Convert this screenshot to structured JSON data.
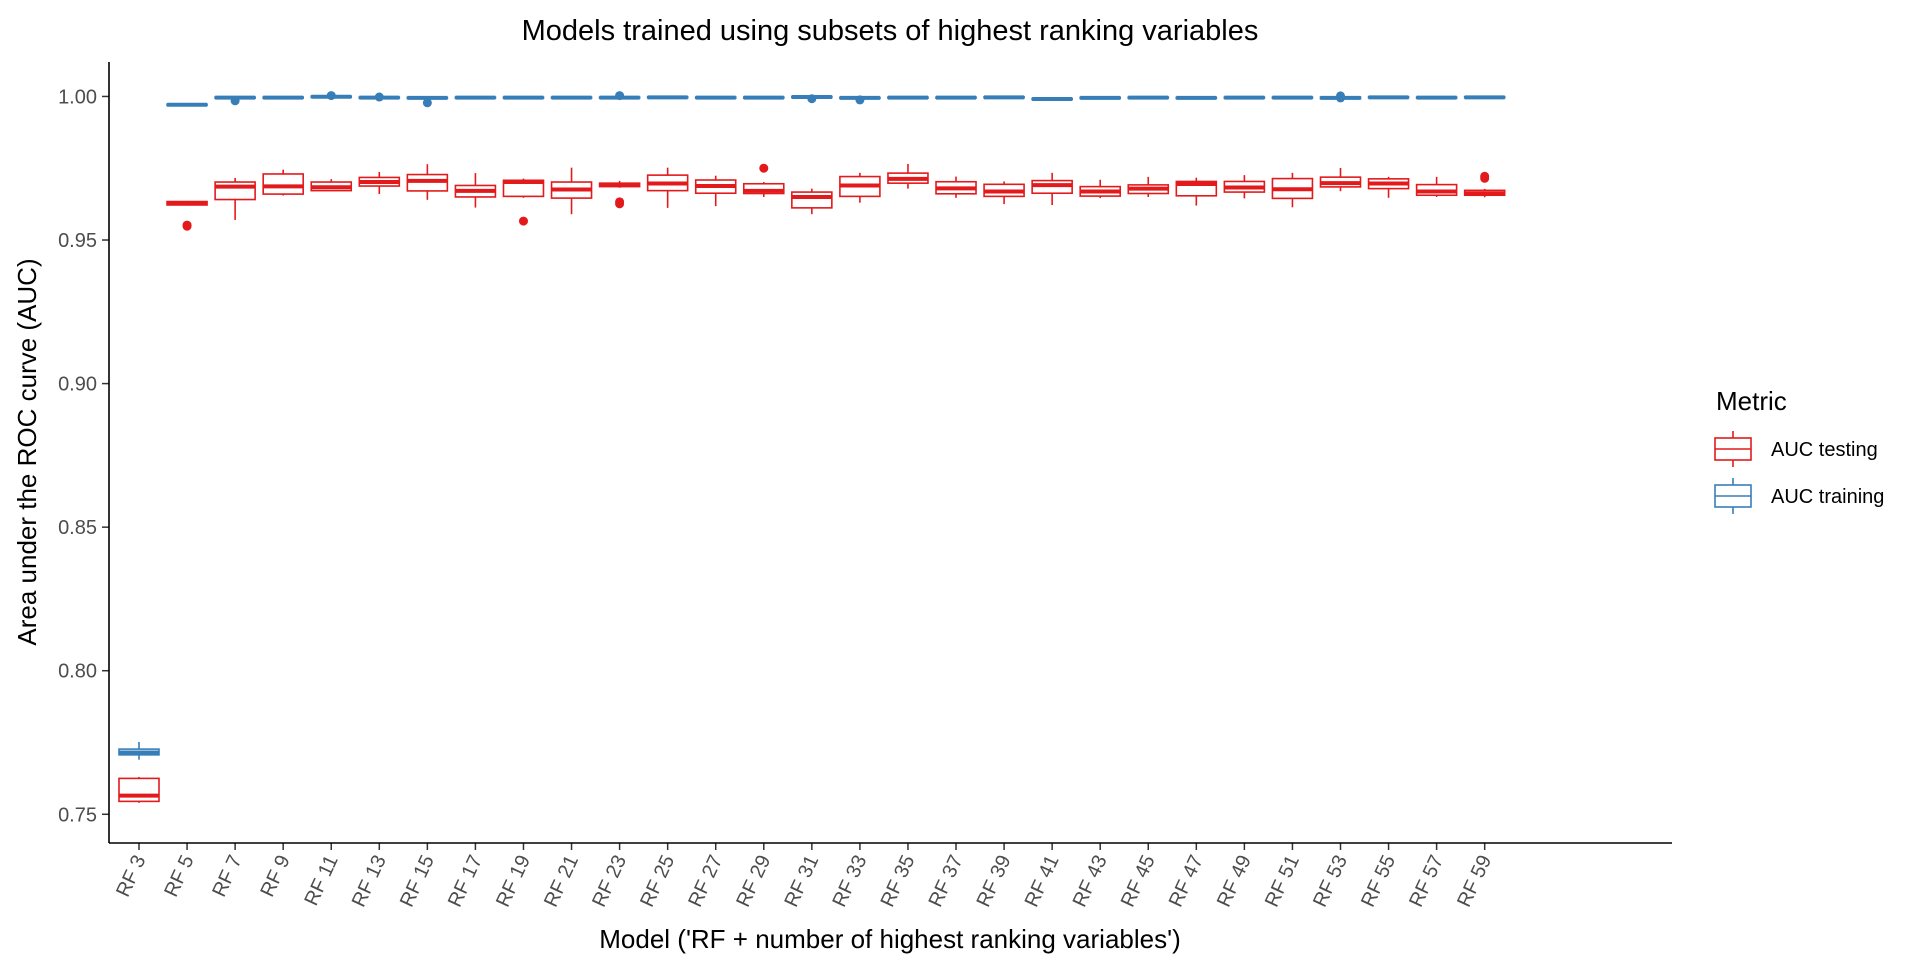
{
  "chart_data": {
    "type": "boxplot",
    "title": "Models trained using subsets of highest ranking variables",
    "xlabel": "Model ('RF + number of highest ranking variables')",
    "ylabel": "Area under the ROC curve (AUC)",
    "ylim": [
      0.74,
      1.012
    ],
    "yticks": [
      0.75,
      0.8,
      0.85,
      0.9,
      0.95,
      1.0
    ],
    "ytick_labels": [
      "0.75",
      "0.80",
      "0.85",
      "0.90",
      "0.95",
      "1.00"
    ],
    "grid": false,
    "legend": {
      "title": "Metric",
      "position": "right",
      "entries": [
        "AUC testing",
        "AUC training"
      ]
    },
    "categories": [
      "RF 3",
      "RF 5",
      "RF 7",
      "RF 9",
      "RF 11",
      "RF 13",
      "RF 15",
      "RF 17",
      "RF 19",
      "RF 21",
      "RF 23",
      "RF 25",
      "RF 27",
      "RF 29",
      "RF 31",
      "RF 33",
      "RF 35",
      "RF 37",
      "RF 39",
      "RF 41",
      "RF 43",
      "RF 45",
      "RF 47",
      "RF 49",
      "RF 51",
      "RF 53",
      "RF 55",
      "RF 57",
      "RF 59"
    ],
    "series": [
      {
        "name": "AUC testing",
        "color": "#E31A1C",
        "boxes": [
          {
            "min": 0.754,
            "q1": 0.7545,
            "median": 0.7565,
            "q3": 0.7625,
            "max": 0.763,
            "outliers": []
          },
          {
            "min": 0.962,
            "q1": 0.9622,
            "median": 0.9628,
            "q3": 0.9634,
            "max": 0.9636,
            "outliers": [
              0.9552,
              0.9548
            ]
          },
          {
            "min": 0.957,
            "q1": 0.9641,
            "median": 0.9686,
            "q3": 0.9702,
            "max": 0.9716,
            "outliers": []
          },
          {
            "min": 0.9655,
            "q1": 0.966,
            "median": 0.9687,
            "q3": 0.973,
            "max": 0.9745,
            "outliers": []
          },
          {
            "min": 0.967,
            "q1": 0.9672,
            "median": 0.9684,
            "q3": 0.9702,
            "max": 0.9712,
            "outliers": []
          },
          {
            "min": 0.966,
            "q1": 0.9688,
            "median": 0.9702,
            "q3": 0.9718,
            "max": 0.9737,
            "outliers": []
          },
          {
            "min": 0.964,
            "q1": 0.9671,
            "median": 0.9706,
            "q3": 0.9728,
            "max": 0.9764,
            "outliers": []
          },
          {
            "min": 0.9613,
            "q1": 0.965,
            "median": 0.9671,
            "q3": 0.969,
            "max": 0.9733,
            "outliers": []
          },
          {
            "min": 0.9647,
            "q1": 0.9652,
            "median": 0.9702,
            "q3": 0.9708,
            "max": 0.9714,
            "outliers": [
              0.9566
            ]
          },
          {
            "min": 0.959,
            "q1": 0.9646,
            "median": 0.9676,
            "q3": 0.9702,
            "max": 0.9752,
            "outliers": []
          },
          {
            "min": 0.9682,
            "q1": 0.9686,
            "median": 0.9693,
            "q3": 0.9698,
            "max": 0.9706,
            "outliers": [
              0.9633,
              0.9626
            ]
          },
          {
            "min": 0.9612,
            "q1": 0.9672,
            "median": 0.9697,
            "q3": 0.9726,
            "max": 0.9752,
            "outliers": []
          },
          {
            "min": 0.9618,
            "q1": 0.9663,
            "median": 0.9688,
            "q3": 0.9709,
            "max": 0.9724,
            "outliers": []
          },
          {
            "min": 0.965,
            "q1": 0.9662,
            "median": 0.9671,
            "q3": 0.9696,
            "max": 0.9702,
            "outliers": [
              0.975
            ]
          },
          {
            "min": 0.959,
            "q1": 0.9612,
            "median": 0.965,
            "q3": 0.9667,
            "max": 0.9679,
            "outliers": []
          },
          {
            "min": 0.963,
            "q1": 0.9652,
            "median": 0.969,
            "q3": 0.9721,
            "max": 0.9734,
            "outliers": []
          },
          {
            "min": 0.9679,
            "q1": 0.9698,
            "median": 0.9713,
            "q3": 0.9733,
            "max": 0.9765,
            "outliers": []
          },
          {
            "min": 0.9647,
            "q1": 0.9661,
            "median": 0.968,
            "q3": 0.9703,
            "max": 0.9721,
            "outliers": []
          },
          {
            "min": 0.9625,
            "q1": 0.9652,
            "median": 0.9669,
            "q3": 0.9694,
            "max": 0.9704,
            "outliers": []
          },
          {
            "min": 0.9622,
            "q1": 0.9663,
            "median": 0.9691,
            "q3": 0.9707,
            "max": 0.9734,
            "outliers": []
          },
          {
            "min": 0.9646,
            "q1": 0.9653,
            "median": 0.9669,
            "q3": 0.9686,
            "max": 0.971,
            "outliers": []
          },
          {
            "min": 0.965,
            "q1": 0.9662,
            "median": 0.9679,
            "q3": 0.9692,
            "max": 0.972,
            "outliers": []
          },
          {
            "min": 0.962,
            "q1": 0.9654,
            "median": 0.9695,
            "q3": 0.9704,
            "max": 0.9717,
            "outliers": []
          },
          {
            "min": 0.9645,
            "q1": 0.9667,
            "median": 0.9683,
            "q3": 0.9704,
            "max": 0.9726,
            "outliers": []
          },
          {
            "min": 0.9614,
            "q1": 0.9645,
            "median": 0.9677,
            "q3": 0.9714,
            "max": 0.9734,
            "outliers": []
          },
          {
            "min": 0.967,
            "q1": 0.9685,
            "median": 0.9698,
            "q3": 0.9719,
            "max": 0.9751,
            "outliers": []
          },
          {
            "min": 0.9647,
            "q1": 0.9679,
            "median": 0.9697,
            "q3": 0.9713,
            "max": 0.972,
            "outliers": []
          },
          {
            "min": 0.965,
            "q1": 0.9656,
            "median": 0.9669,
            "q3": 0.9693,
            "max": 0.972,
            "outliers": []
          },
          {
            "min": 0.9649,
            "q1": 0.9656,
            "median": 0.9663,
            "q3": 0.9673,
            "max": 0.9678,
            "outliers": [
              0.9722,
              0.9715
            ]
          }
        ]
      },
      {
        "name": "AUC training",
        "color": "#377EB8",
        "boxes": [
          {
            "min": 0.769,
            "q1": 0.7707,
            "median": 0.7715,
            "q3": 0.7727,
            "max": 0.7752,
            "outliers": []
          },
          {
            "min": 0.9967,
            "q1": 0.9969,
            "median": 0.9971,
            "q3": 0.9973,
            "max": 0.9975,
            "outliers": []
          },
          {
            "min": 0.9993,
            "q1": 0.9994,
            "median": 0.9996,
            "q3": 0.9998,
            "max": 0.9999,
            "outliers": [
              0.9985
            ]
          },
          {
            "min": 0.9993,
            "q1": 0.9994,
            "median": 0.9996,
            "q3": 0.9998,
            "max": 0.9999,
            "outliers": []
          },
          {
            "min": 0.9995,
            "q1": 0.9997,
            "median": 0.9999,
            "q3": 1.0001,
            "max": 1.0002,
            "outliers": [
              1.0003
            ]
          },
          {
            "min": 0.9993,
            "q1": 0.9994,
            "median": 0.9996,
            "q3": 0.9998,
            "max": 0.9999,
            "outliers": [
              0.9998
            ]
          },
          {
            "min": 0.9992,
            "q1": 0.9993,
            "median": 0.9995,
            "q3": 0.9997,
            "max": 0.9998,
            "outliers": [
              0.9978
            ]
          },
          {
            "min": 0.9993,
            "q1": 0.9994,
            "median": 0.9996,
            "q3": 0.9998,
            "max": 0.9999,
            "outliers": []
          },
          {
            "min": 0.9993,
            "q1": 0.9994,
            "median": 0.9996,
            "q3": 0.9998,
            "max": 0.9999,
            "outliers": []
          },
          {
            "min": 0.9993,
            "q1": 0.9994,
            "median": 0.9996,
            "q3": 0.9998,
            "max": 0.9999,
            "outliers": []
          },
          {
            "min": 0.9993,
            "q1": 0.9994,
            "median": 0.9996,
            "q3": 0.9998,
            "max": 0.9999,
            "outliers": [
              1.0003
            ]
          },
          {
            "min": 0.9994,
            "q1": 0.9995,
            "median": 0.9997,
            "q3": 0.9999,
            "max": 1.0,
            "outliers": []
          },
          {
            "min": 0.9993,
            "q1": 0.9994,
            "median": 0.9996,
            "q3": 0.9998,
            "max": 0.9999,
            "outliers": []
          },
          {
            "min": 0.9993,
            "q1": 0.9994,
            "median": 0.9996,
            "q3": 0.9998,
            "max": 0.9999,
            "outliers": []
          },
          {
            "min": 0.9995,
            "q1": 0.9996,
            "median": 0.9998,
            "q3": 1.0,
            "max": 1.0001,
            "outliers": [
              0.9992
            ]
          },
          {
            "min": 0.9992,
            "q1": 0.9993,
            "median": 0.9995,
            "q3": 0.9997,
            "max": 0.9998,
            "outliers": [
              0.9988
            ]
          },
          {
            "min": 0.9993,
            "q1": 0.9994,
            "median": 0.9996,
            "q3": 0.9998,
            "max": 0.9999,
            "outliers": []
          },
          {
            "min": 0.9993,
            "q1": 0.9994,
            "median": 0.9996,
            "q3": 0.9998,
            "max": 0.9999,
            "outliers": []
          },
          {
            "min": 0.9994,
            "q1": 0.9995,
            "median": 0.9997,
            "q3": 0.9999,
            "max": 1.0,
            "outliers": []
          },
          {
            "min": 0.9988,
            "q1": 0.9989,
            "median": 0.9991,
            "q3": 0.9993,
            "max": 0.9994,
            "outliers": []
          },
          {
            "min": 0.9992,
            "q1": 0.9993,
            "median": 0.9995,
            "q3": 0.9997,
            "max": 0.9998,
            "outliers": []
          },
          {
            "min": 0.9993,
            "q1": 0.9994,
            "median": 0.9996,
            "q3": 0.9998,
            "max": 0.9999,
            "outliers": []
          },
          {
            "min": 0.9992,
            "q1": 0.9993,
            "median": 0.9995,
            "q3": 0.9997,
            "max": 0.9998,
            "outliers": []
          },
          {
            "min": 0.9993,
            "q1": 0.9994,
            "median": 0.9996,
            "q3": 0.9998,
            "max": 0.9999,
            "outliers": []
          },
          {
            "min": 0.9993,
            "q1": 0.9994,
            "median": 0.9996,
            "q3": 0.9998,
            "max": 0.9999,
            "outliers": []
          },
          {
            "min": 0.999,
            "q1": 0.9992,
            "median": 0.9995,
            "q3": 0.9998,
            "max": 1.0,
            "outliers": [
              1.0002,
              0.9995
            ]
          },
          {
            "min": 0.9994,
            "q1": 0.9995,
            "median": 0.9997,
            "q3": 0.9999,
            "max": 1.0,
            "outliers": []
          },
          {
            "min": 0.9993,
            "q1": 0.9994,
            "median": 0.9996,
            "q3": 0.9998,
            "max": 0.9999,
            "outliers": []
          },
          {
            "min": 0.9994,
            "q1": 0.9995,
            "median": 0.9997,
            "q3": 0.9999,
            "max": 1.0,
            "outliers": []
          }
        ]
      }
    ]
  }
}
